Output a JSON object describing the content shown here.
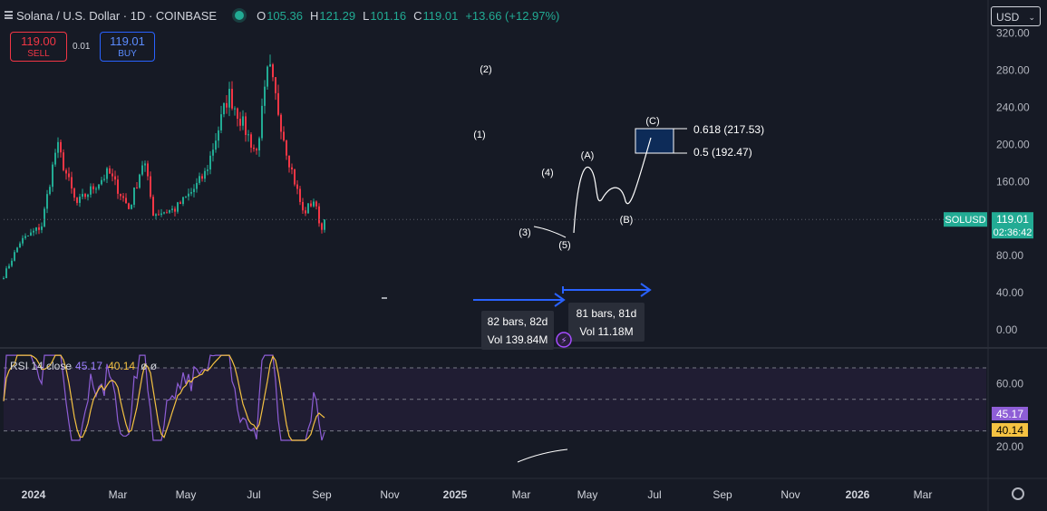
{
  "header": {
    "title": "Solana / U.S. Dollar · 1D · COINBASE",
    "open_label": "O",
    "open": "105.36",
    "high_label": "H",
    "high": "121.29",
    "low_label": "L",
    "low": "101.16",
    "close_label": "C",
    "close": "119.01",
    "change": "+13.66 (+12.97%)"
  },
  "trade": {
    "sell_price": "119.00",
    "sell_label": "SELL",
    "spread": "0.01",
    "buy_price": "119.01",
    "buy_label": "BUY"
  },
  "currency": "USD",
  "price_tag": {
    "symbol": "SOLUSD",
    "price": "119.01",
    "countdown": "02:36:42"
  },
  "rsi": {
    "legend": "RSI 14 close",
    "value": "45.17",
    "ma_value": "40.14",
    "extra": "ø ø",
    "ticks": [
      "60.00",
      "20.00"
    ]
  },
  "measures": [
    {
      "bars": "82 bars, 82d",
      "vol": "Vol 139.84M"
    },
    {
      "bars": "81 bars, 81d",
      "vol": "Vol 11.18M"
    }
  ],
  "fib": {
    "upper": "0.618 (217.53)",
    "lower": "0.5 (192.47)"
  },
  "waves": [
    "(1)",
    "(2)",
    "(3)",
    "(4)",
    "(5)",
    "(A)",
    "(B)",
    "(C)"
  ],
  "colors": {
    "bg": "#161a25",
    "up": "#22ab94",
    "down": "#f23645",
    "rsi": "#7e57c2",
    "rsi_ma": "#f5c242",
    "blue": "#2962ff"
  },
  "chart_data": {
    "type": "candlestick",
    "symbol": "SOLUSD",
    "timeframe": "1D",
    "ylim": [
      0,
      320
    ],
    "y_ticks": [
      "320.00",
      "280.00",
      "240.00",
      "200.00",
      "160.00",
      "120.00",
      "80.00",
      "40.00",
      "0.00"
    ],
    "x_ticks": [
      "2024",
      "Mar",
      "May",
      "Jul",
      "Sep",
      "Nov",
      "2025",
      "Mar",
      "May",
      "Jul",
      "Sep",
      "Nov",
      "2026",
      "Mar"
    ],
    "key_points": [
      {
        "date": "2024-01-01",
        "close": 58
      },
      {
        "date": "2024-01-25",
        "close": 95
      },
      {
        "date": "2024-02-25",
        "close": 112
      },
      {
        "date": "2024-03-18",
        "close": 200
      },
      {
        "date": "2024-04-15",
        "close": 135
      },
      {
        "date": "2024-06-01",
        "close": 170
      },
      {
        "date": "2024-07-01",
        "close": 130
      },
      {
        "date": "2024-07-22",
        "close": 185
      },
      {
        "date": "2024-08-05",
        "close": 125
      },
      {
        "date": "2024-09-05",
        "close": 130
      },
      {
        "date": "2024-10-01",
        "close": 150
      },
      {
        "date": "2024-10-20",
        "close": 170
      },
      {
        "date": "2024-11-22",
        "close": 255
      },
      {
        "date": "2025-01-01",
        "close": 190
      },
      {
        "date": "2025-01-19",
        "close": 285
      },
      {
        "date": "2025-02-15",
        "close": 190
      },
      {
        "date": "2025-03-10",
        "close": 125
      },
      {
        "date": "2025-03-25",
        "close": 140
      },
      {
        "date": "2025-04-07",
        "close": 105
      },
      {
        "date": "2025-04-10",
        "close": 119.01
      }
    ],
    "last_price": 119.01,
    "rsi_range": [
      0,
      100
    ]
  }
}
